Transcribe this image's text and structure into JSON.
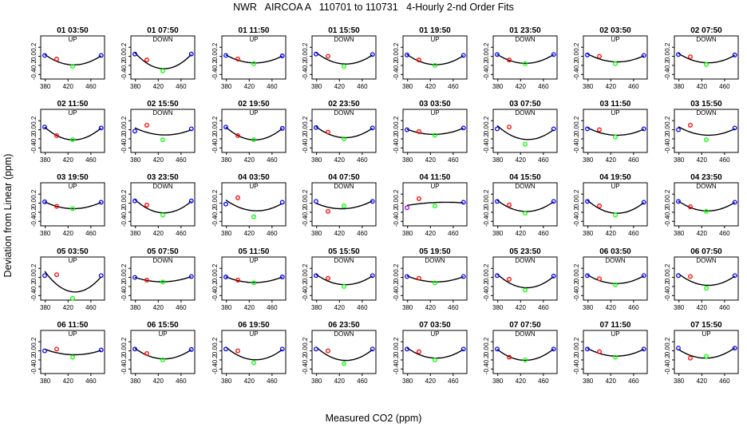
{
  "title": "NWR   AIRCOA A   110701 to 110731   4-Hourly 2-nd Order Fits",
  "xlabel": "Measured CO2 (ppm)",
  "ylabel": "Deviation from Linear (ppm)",
  "colors": {
    "fit": "#000000",
    "low": "#0000ff",
    "low_mid": "#ff0000",
    "mid": "#00ff00",
    "high": "#0000ff",
    "low_alt": "#a000ff"
  },
  "chart_data": {
    "type": "scatter",
    "layout": "5 rows x 8 small multiples",
    "x_ticks": [
      380,
      420,
      460
    ],
    "y_ticks": [
      -0.4,
      -0.2,
      0.0,
      0.2
    ],
    "xlim": [
      372,
      484
    ],
    "ylim": [
      -0.5,
      0.45
    ],
    "standards_x": [
      379,
      400,
      428,
      478
    ],
    "panels": [
      {
        "label": "01 03:50",
        "dir": "UP",
        "pts": [
          0.02,
          -0.06,
          -0.22,
          0.02
        ]
      },
      {
        "label": "01 07:50",
        "dir": "DOWN",
        "pts": [
          0.05,
          -0.08,
          -0.32,
          0.05
        ]
      },
      {
        "label": "01 11:50",
        "dir": "UP",
        "pts": [
          0.02,
          -0.06,
          -0.16,
          0.01
        ]
      },
      {
        "label": "01 15:50",
        "dir": "DOWN",
        "pts": [
          0.05,
          0.0,
          -0.22,
          0.04
        ]
      },
      {
        "label": "01 19:50",
        "dir": "UP",
        "pts": [
          0.03,
          -0.08,
          -0.2,
          0.02
        ]
      },
      {
        "label": "01 23:50",
        "dir": "DOWN",
        "pts": [
          0.04,
          -0.08,
          -0.16,
          0.04
        ]
      },
      {
        "label": "02 03:50",
        "dir": "UP",
        "pts": [
          0.03,
          0.0,
          -0.16,
          0.02
        ]
      },
      {
        "label": "02 07:50",
        "dir": "DOWN",
        "pts": [
          0.04,
          -0.01,
          -0.18,
          0.03
        ]
      },
      {
        "label": "02 11:50",
        "dir": "UP",
        "pts": [
          0.06,
          -0.13,
          -0.22,
          0.04
        ]
      },
      {
        "label": "02 15:50",
        "dir": "DOWN",
        "pts": [
          -0.03,
          0.1,
          -0.22,
          0.02
        ]
      },
      {
        "label": "02 19:50",
        "dir": "UP",
        "pts": [
          0.06,
          -0.13,
          -0.22,
          0.03
        ]
      },
      {
        "label": "02 23:50",
        "dir": "DOWN",
        "pts": [
          0.05,
          -0.05,
          -0.2,
          0.04
        ]
      },
      {
        "label": "03 03:50",
        "dir": "UP",
        "pts": [
          0.0,
          -0.04,
          -0.12,
          0.04
        ]
      },
      {
        "label": "03 07:50",
        "dir": "DOWN",
        "pts": [
          0.02,
          0.06,
          -0.32,
          0.02
        ]
      },
      {
        "label": "03 11:50",
        "dir": "UP",
        "pts": [
          0.02,
          0.0,
          -0.16,
          0.02
        ]
      },
      {
        "label": "03 15:50",
        "dir": "DOWN",
        "pts": [
          0.0,
          0.1,
          -0.22,
          0.04
        ]
      },
      {
        "label": "03 19:50",
        "dir": "UP",
        "pts": [
          0.03,
          -0.07,
          -0.12,
          0.02
        ]
      },
      {
        "label": "03 23:50",
        "dir": "DOWN",
        "pts": [
          0.05,
          -0.04,
          -0.26,
          0.05
        ]
      },
      {
        "label": "04 03:50",
        "dir": "UP",
        "pts": [
          -0.02,
          0.12,
          -0.3,
          0.02
        ]
      },
      {
        "label": "04 07:50",
        "dir": "DOWN",
        "pts": [
          0.04,
          -0.18,
          -0.06,
          0.04
        ]
      },
      {
        "label": "04 11:50",
        "dir": "UP",
        "pts": [
          -0.1,
          0.1,
          -0.06,
          0.02
        ]
      },
      {
        "label": "04 15:50",
        "dir": "DOWN",
        "pts": [
          0.04,
          -0.04,
          -0.22,
          0.04
        ]
      },
      {
        "label": "04 19:50",
        "dir": "UP",
        "pts": [
          0.04,
          -0.06,
          -0.26,
          0.02
        ]
      },
      {
        "label": "04 23:50",
        "dir": "DOWN",
        "pts": [
          0.04,
          -0.08,
          -0.18,
          0.02
        ]
      },
      {
        "label": "05 03:50",
        "dir": "UP",
        "pts": [
          0.04,
          0.06,
          -0.46,
          0.04
        ]
      },
      {
        "label": "05 07:50",
        "dir": "DOWN",
        "pts": [
          0.0,
          -0.06,
          -0.1,
          0.02
        ]
      },
      {
        "label": "05 11:50",
        "dir": "UP",
        "pts": [
          0.01,
          -0.06,
          -0.12,
          0.01
        ]
      },
      {
        "label": "05 15:50",
        "dir": "DOWN",
        "pts": [
          0.04,
          -0.02,
          -0.2,
          0.04
        ]
      },
      {
        "label": "05 19:50",
        "dir": "DOWN",
        "pts": [
          0.02,
          -0.02,
          -0.12,
          0.02
        ]
      },
      {
        "label": "05 23:50",
        "dir": "DOWN",
        "pts": [
          0.04,
          -0.04,
          -0.28,
          0.03
        ]
      },
      {
        "label": "06 03:50",
        "dir": "DOWN",
        "pts": [
          0.04,
          -0.03,
          -0.16,
          0.04
        ]
      },
      {
        "label": "06 07:50",
        "dir": "DOWN",
        "pts": [
          0.04,
          0.02,
          -0.24,
          0.04
        ]
      },
      {
        "label": "06 11:50",
        "dir": "UP",
        "pts": [
          0.0,
          0.04,
          -0.14,
          0.02
        ]
      },
      {
        "label": "06 15:50",
        "dir": "UP",
        "pts": [
          0.04,
          -0.06,
          -0.2,
          0.03
        ]
      },
      {
        "label": "06 19:50",
        "dir": "UP",
        "pts": [
          0.04,
          0.0,
          -0.26,
          0.04
        ]
      },
      {
        "label": "06 23:50",
        "dir": "DOWN",
        "pts": [
          0.04,
          0.0,
          -0.28,
          0.04
        ]
      },
      {
        "label": "07 03:50",
        "dir": "UP",
        "pts": [
          0.04,
          -0.02,
          -0.2,
          0.04
        ]
      },
      {
        "label": "07 07:50",
        "dir": "DOWN",
        "pts": [
          0.04,
          -0.14,
          -0.2,
          0.04
        ]
      },
      {
        "label": "07 11:50",
        "dir": "UP",
        "pts": [
          0.04,
          -0.02,
          -0.14,
          0.04
        ]
      },
      {
        "label": "07 15:50",
        "dir": "UP",
        "pts": [
          0.06,
          -0.16,
          -0.12,
          0.06
        ]
      }
    ]
  }
}
